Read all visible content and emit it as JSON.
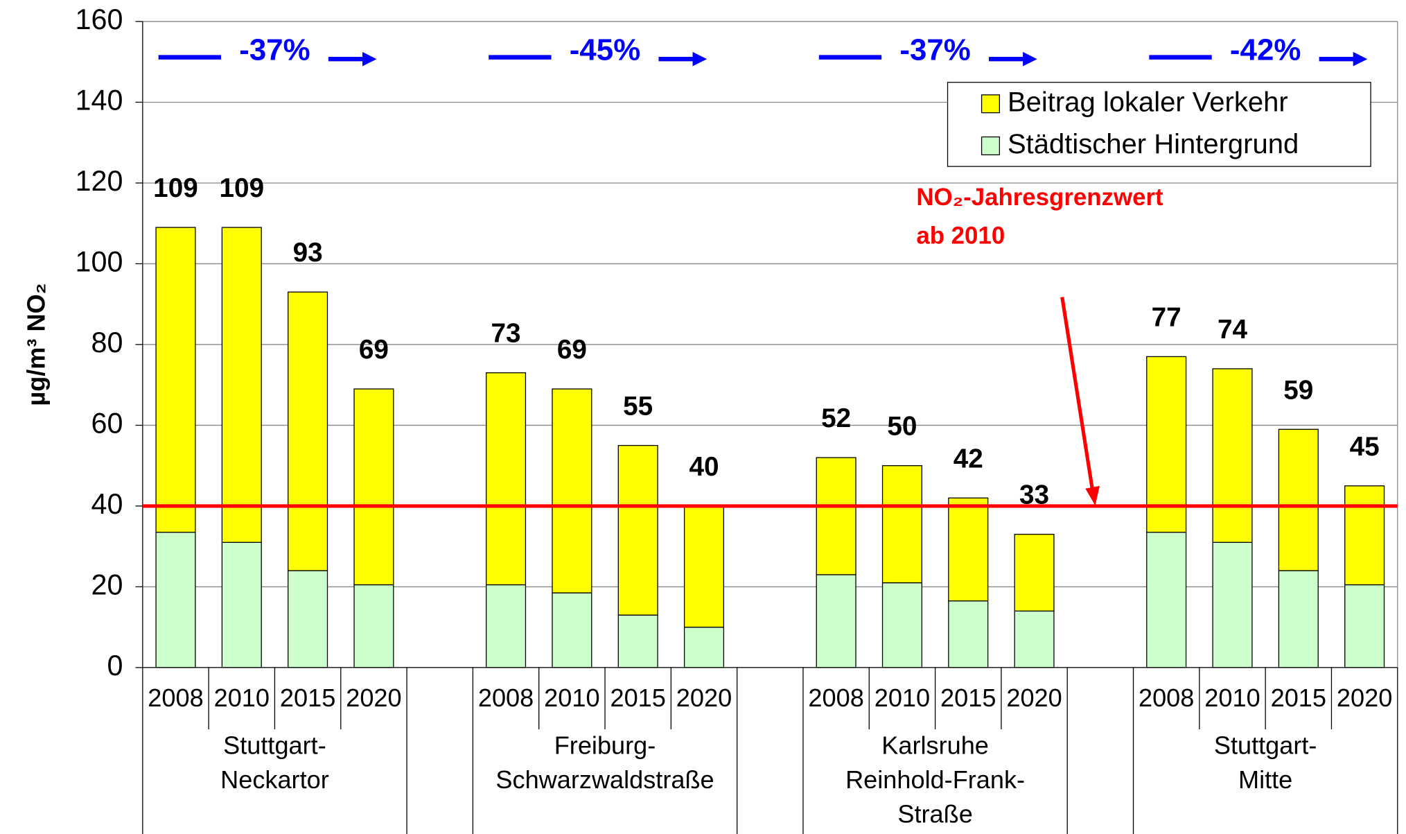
{
  "chart_data": {
    "type": "stacked_bar",
    "ylabel": "µg/m³ NO₂",
    "ylim": [
      0,
      160
    ],
    "yticks": [
      0,
      20,
      40,
      60,
      80,
      100,
      120,
      140,
      160
    ],
    "grid": true,
    "categories": [
      "2008",
      "2010",
      "2015",
      "2020",
      "2008",
      "2010",
      "2015",
      "2020",
      "2008",
      "2010",
      "2015",
      "2020",
      "2008",
      "2010",
      "2015",
      "2020"
    ],
    "groups": [
      {
        "lines": [
          "Stuttgart-",
          "Neckartor"
        ],
        "change": "-37%"
      },
      {
        "lines": [
          "Freiburg-",
          "Schwarzwaldstraße"
        ],
        "change": "-45%"
      },
      {
        "lines": [
          "Karlsruhe",
          "Reinhold-Frank-",
          "Straße"
        ],
        "change": "-37%"
      },
      {
        "lines": [
          "Stuttgart-",
          "Mitte"
        ],
        "change": "-42%"
      }
    ],
    "series": [
      {
        "name": "Städtischer Hintergrund",
        "color": "#ccffcc",
        "values": [
          33.5,
          31,
          24,
          20.5,
          20.5,
          18.5,
          13,
          10,
          23,
          21,
          16.5,
          14,
          33.5,
          31,
          24,
          20.5
        ]
      },
      {
        "name": "Beitrag lokaler Verkehr",
        "color": "#ffff00",
        "values": [
          75.5,
          78,
          69,
          48.5,
          52.5,
          50.5,
          42,
          30,
          29,
          29,
          25.5,
          19,
          43.5,
          43,
          35,
          24.5
        ]
      }
    ],
    "totals": [
      109,
      109,
      93,
      69,
      73,
      69,
      55,
      40,
      52,
      50,
      42,
      33,
      77,
      74,
      59,
      45
    ],
    "limit": 40,
    "limit_color": "#ff0000",
    "limit_label": [
      "NO₂-Jahresgrenzwert",
      "ab 2010"
    ],
    "change_color": "#0000ff"
  }
}
